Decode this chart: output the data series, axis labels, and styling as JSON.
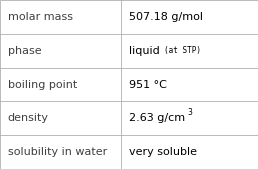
{
  "rows": [
    {
      "label": "molar mass",
      "value": "507.18 g/mol",
      "superscript": null,
      "extra": null
    },
    {
      "label": "phase",
      "value": "liquid",
      "superscript": null,
      "extra": "(at STP)"
    },
    {
      "label": "boiling point",
      "value": "951 °C",
      "superscript": null,
      "extra": null
    },
    {
      "label": "density",
      "value": "2.63 g/cm",
      "superscript": "3",
      "extra": null
    },
    {
      "label": "solubility in water",
      "value": "very soluble",
      "superscript": null,
      "extra": null
    }
  ],
  "col_split": 0.47,
  "bg_color": "#ffffff",
  "border_color": "#b0b0b0",
  "label_fontsize": 8.0,
  "value_fontsize": 8.0,
  "sup_fontsize": 5.5,
  "extra_fontsize": 5.5,
  "label_color": "#404040",
  "value_color": "#000000"
}
